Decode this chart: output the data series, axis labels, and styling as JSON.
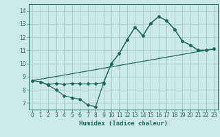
{
  "xlabel": "Humidex (Indice chaleur)",
  "xlim": [
    -0.5,
    23.5
  ],
  "ylim": [
    6.5,
    14.5
  ],
  "xticks": [
    0,
    1,
    2,
    3,
    4,
    5,
    6,
    7,
    8,
    9,
    10,
    11,
    12,
    13,
    14,
    15,
    16,
    17,
    18,
    19,
    20,
    21,
    22,
    23
  ],
  "yticks": [
    7,
    8,
    9,
    10,
    11,
    12,
    13,
    14
  ],
  "background_color": "#cce8e8",
  "grid_color": "#aacccc",
  "line_color": "#1a6b5a",
  "line1_x": [
    0,
    1,
    2,
    3,
    4,
    5,
    6,
    7,
    8,
    9,
    10,
    11,
    12,
    13,
    14,
    15,
    16,
    17,
    18,
    19,
    20,
    21,
    22,
    23
  ],
  "line1_y": [
    8.7,
    8.6,
    8.35,
    8.0,
    7.55,
    7.4,
    7.3,
    6.85,
    6.72,
    8.5,
    10.0,
    10.75,
    11.8,
    12.75,
    12.1,
    13.05,
    13.55,
    13.25,
    12.6,
    11.7,
    11.4,
    11.0,
    11.0,
    11.1
  ],
  "line2_x": [
    0,
    1,
    2,
    3,
    4,
    5,
    6,
    7,
    8,
    9,
    10,
    11,
    12,
    13,
    14,
    15,
    16,
    17,
    18,
    19,
    20,
    21,
    22,
    23
  ],
  "line2_y": [
    8.7,
    8.6,
    8.4,
    8.5,
    8.4,
    8.5,
    8.45,
    8.45,
    8.45,
    8.55,
    10.0,
    10.75,
    11.8,
    12.75,
    12.1,
    13.05,
    13.55,
    13.25,
    12.6,
    11.7,
    11.4,
    11.0,
    11.0,
    11.1
  ],
  "line3_x": [
    0,
    23
  ],
  "line3_y": [
    8.7,
    11.1
  ]
}
